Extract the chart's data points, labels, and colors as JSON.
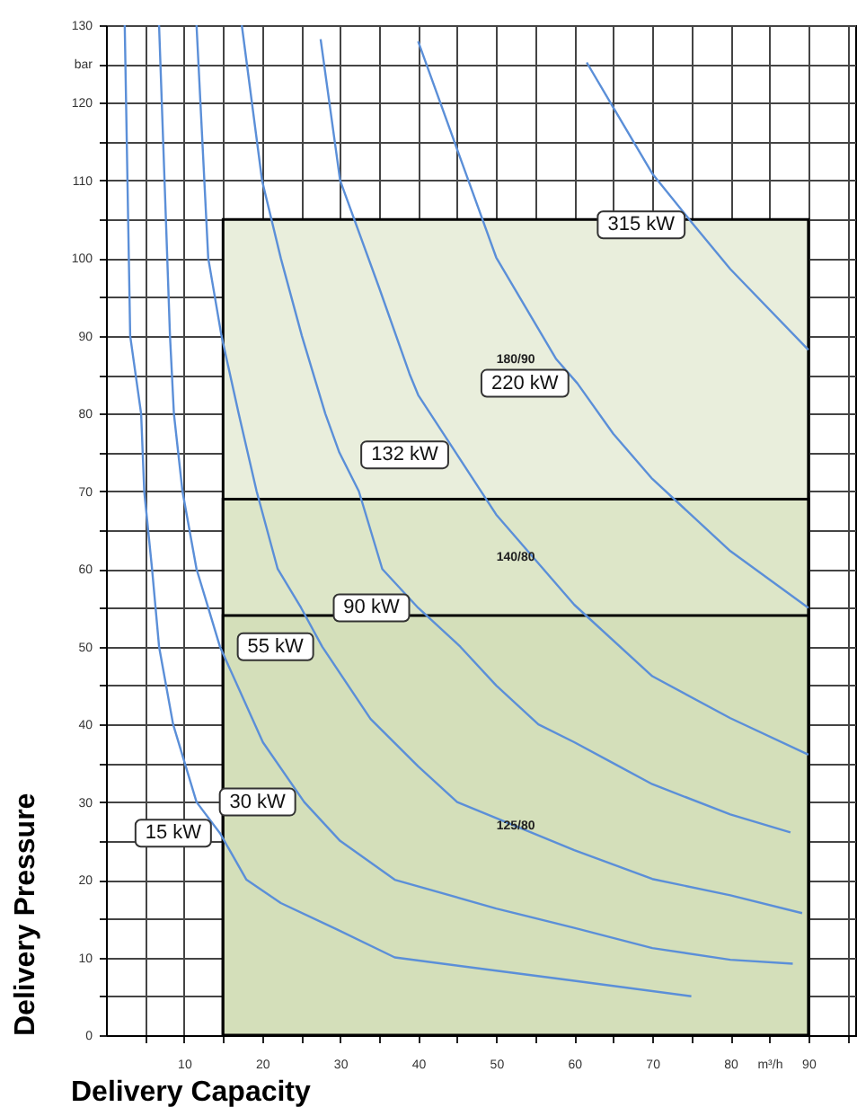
{
  "chart_data": {
    "type": "line",
    "xlabel": "Delivery Capacity",
    "ylabel": "Delivery Pressure",
    "xlim": [
      0,
      96
    ],
    "ylim": [
      0,
      130
    ],
    "xticks": [
      {
        "value": 5,
        "label": null
      },
      10,
      {
        "value": 15,
        "label": null
      },
      20,
      {
        "value": 25,
        "label": null
      },
      30,
      {
        "value": 35,
        "label": null
      },
      40,
      {
        "value": 45,
        "label": null
      },
      50,
      {
        "value": 55,
        "label": null
      },
      60,
      {
        "value": 65,
        "label": null
      },
      70,
      {
        "value": 75,
        "label": null
      },
      80,
      {
        "value": 85,
        "label": "m³/h"
      },
      90,
      {
        "value": 95,
        "label": null
      }
    ],
    "yticks": [
      0,
      {
        "value": 5,
        "label": null
      },
      10,
      {
        "value": 15,
        "label": null
      },
      20,
      {
        "value": 25,
        "label": null
      },
      30,
      {
        "value": 35,
        "label": null
      },
      40,
      {
        "value": 45,
        "label": null
      },
      50,
      {
        "value": 55,
        "label": null
      },
      60,
      {
        "value": 65,
        "label": null
      },
      70,
      {
        "value": 75,
        "label": null
      },
      80,
      {
        "value": 85,
        "label": null
      },
      90,
      {
        "value": 95,
        "label": null
      },
      100,
      {
        "value": 105,
        "label": null
      },
      110,
      {
        "value": 115,
        "label": null
      },
      120,
      {
        "value": 125,
        "label": "bar"
      },
      130
    ],
    "grid": true,
    "marker": "none",
    "line_style": "solid",
    "annotations": [
      "180/90",
      "140/80",
      "125/80"
    ],
    "series": [
      {
        "type": "area",
        "color": "#e9eedc",
        "x": [
          15,
          90
        ],
        "values": [
          105,
          105
        ]
      },
      {
        "type": "area",
        "color": "#dde6c8",
        "x": [
          15,
          90
        ],
        "values": [
          69,
          69
        ]
      },
      {
        "type": "area",
        "color": "#d4dfba",
        "x": [
          15,
          90
        ],
        "values": [
          54,
          54
        ]
      },
      {
        "name": "15 kW",
        "color": "#5b8fd8",
        "x": [
          2.4,
          3.1,
          4.5,
          4.9,
          5.9,
          6.8,
          8.6,
          11.6,
          14.6,
          18,
          22.4,
          29.6,
          37,
          50,
          60,
          75
        ],
        "values": [
          130,
          90,
          80,
          70,
          60,
          50,
          40,
          30,
          26,
          20,
          17,
          13.6,
          10,
          8.3,
          7,
          5
        ]
      },
      {
        "name": "30 kW",
        "color": "#5b8fd8",
        "x": [
          6.8,
          8.2,
          8.7,
          9.8,
          11.6,
          13.1,
          14.6,
          20.1,
          25.4,
          30,
          37,
          50,
          60,
          70,
          80,
          88
        ],
        "values": [
          130,
          90,
          80,
          70,
          60,
          55,
          50,
          37.7,
          30,
          25,
          20,
          16.3,
          13.8,
          11.2,
          9.7,
          9.2
        ]
      },
      {
        "name": "55 kW",
        "color": "#5b8fd8",
        "x": [
          11.6,
          13.1,
          14.8,
          17,
          19.3,
          22,
          25,
          27.7,
          33.9,
          40,
          45,
          60,
          70,
          80,
          89.2
        ],
        "values": [
          130,
          100,
          90,
          80,
          70,
          60,
          55,
          50,
          40.7,
          34.6,
          30,
          23.8,
          20.1,
          18,
          15.7
        ]
      },
      {
        "name": "90 kW",
        "color": "#5b8fd8",
        "x": [
          17.4,
          20,
          22.4,
          25.1,
          28.1,
          29.9,
          32.4,
          35.4,
          40,
          45.4,
          50,
          55.4,
          60,
          65,
          70,
          80,
          87.7
        ],
        "values": [
          130,
          110,
          100,
          90,
          80,
          75,
          70,
          60,
          55,
          50,
          45,
          40,
          37.7,
          35,
          32.3,
          28.4,
          26.1
        ]
      },
      {
        "name": "132 kW",
        "color": "#5b8fd8",
        "x": [
          27.5,
          30,
          35,
          38.9,
          40,
          45,
          50,
          60,
          70,
          80,
          90
        ],
        "values": [
          128.2,
          110,
          96.2,
          85.1,
          82.4,
          74.7,
          67,
          55.4,
          46.2,
          40.8,
          36.1
        ]
      },
      {
        "name": "220 kW",
        "color": "#5b8fd8",
        "x": [
          40,
          45,
          50,
          57.7,
          60.4,
          65,
          70,
          80,
          90
        ],
        "values": [
          127.9,
          114,
          100.1,
          87,
          83.9,
          77.4,
          71.6,
          62.3,
          55
        ]
      },
      {
        "name": "315 kW",
        "color": "#5b8fd8",
        "x": [
          61.6,
          65,
          70,
          75.3,
          80,
          90
        ],
        "values": [
          125.2,
          119.4,
          110.9,
          104.3,
          98.6,
          88.2
        ]
      }
    ]
  }
}
